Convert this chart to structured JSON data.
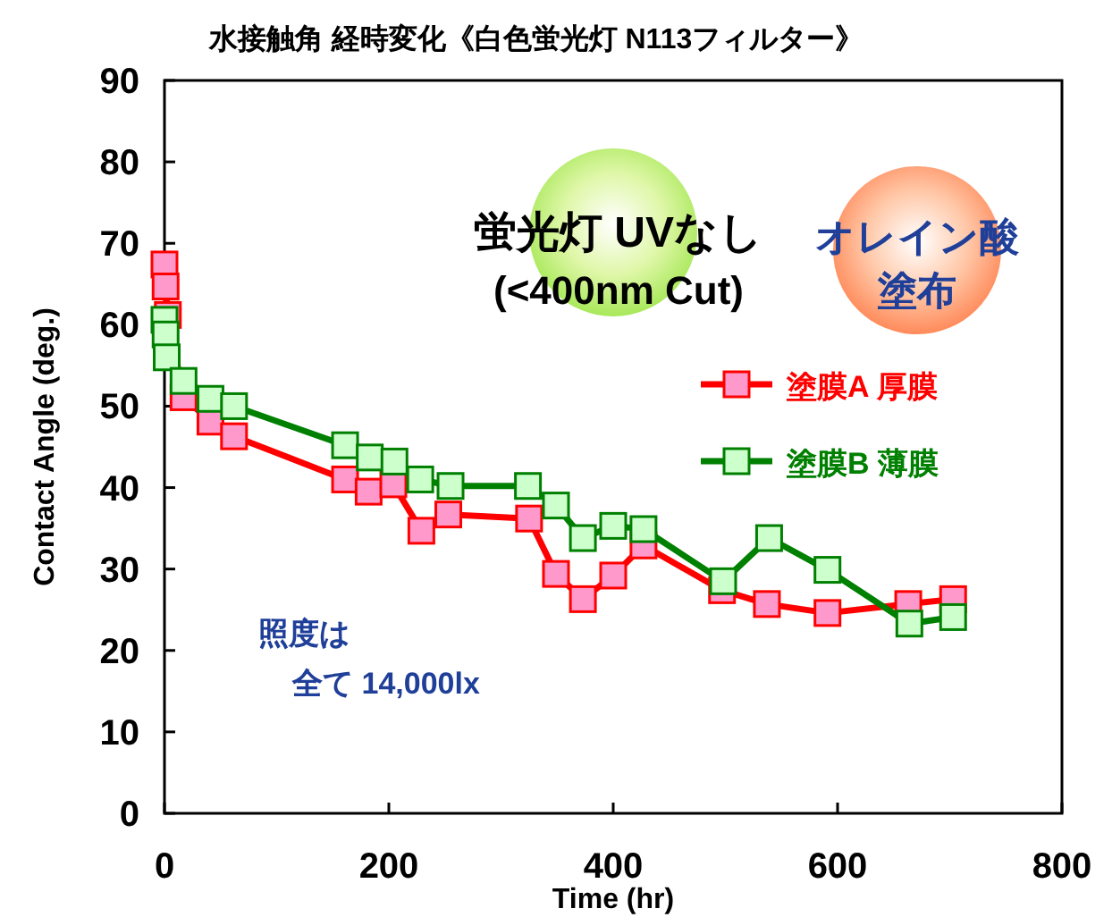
{
  "chart_data": {
    "type": "line",
    "title": "水接触角 経時変化《白色蛍光灯 N113フィルター》",
    "xlabel": "Time (hr)",
    "ylabel": "Contact Angle (deg.)",
    "xlim": [
      0,
      800
    ],
    "xticks": [
      0,
      200,
      400,
      600,
      800
    ],
    "ylim": [
      0,
      90
    ],
    "yticks": [
      0,
      10,
      20,
      30,
      40,
      50,
      60,
      70,
      80,
      90
    ],
    "grid": false,
    "legend": "right",
    "marker": "square",
    "line_style": "solid",
    "series": [
      {
        "name": "塗膜A 厚膜",
        "color": "#ff0000",
        "x": [
          0,
          1,
          3,
          17,
          41,
          62,
          161,
          182,
          204,
          229,
          253,
          325,
          349,
          373,
          400,
          427,
          497,
          537,
          591,
          663,
          703
        ],
        "values": [
          67.4,
          64.7,
          61.2,
          51.1,
          48.1,
          46.3,
          41.0,
          39.5,
          40.4,
          34.7,
          36.7,
          36.2,
          29.4,
          26.3,
          29.2,
          32.9,
          27.4,
          25.7,
          24.6,
          25.7,
          26.3
        ]
      },
      {
        "name": "塗膜B 薄膜",
        "color": "#008000",
        "x": [
          0,
          1,
          2,
          17,
          41,
          62,
          161,
          183,
          205,
          228,
          255,
          324,
          349,
          373,
          400,
          427,
          498,
          539,
          591,
          664,
          703
        ],
        "values": [
          60.6,
          58.8,
          56.0,
          53.1,
          50.9,
          50.0,
          45.2,
          43.7,
          43.2,
          41.0,
          40.2,
          40.2,
          37.8,
          33.8,
          35.3,
          34.9,
          28.5,
          33.8,
          29.9,
          23.3,
          24.1
        ]
      }
    ],
    "annotations": [
      "蛍光灯 UVなし",
      "(<400nm Cut)",
      "オレイン酸",
      "塗布",
      "照度は",
      "全て 14,000lx"
    ]
  }
}
